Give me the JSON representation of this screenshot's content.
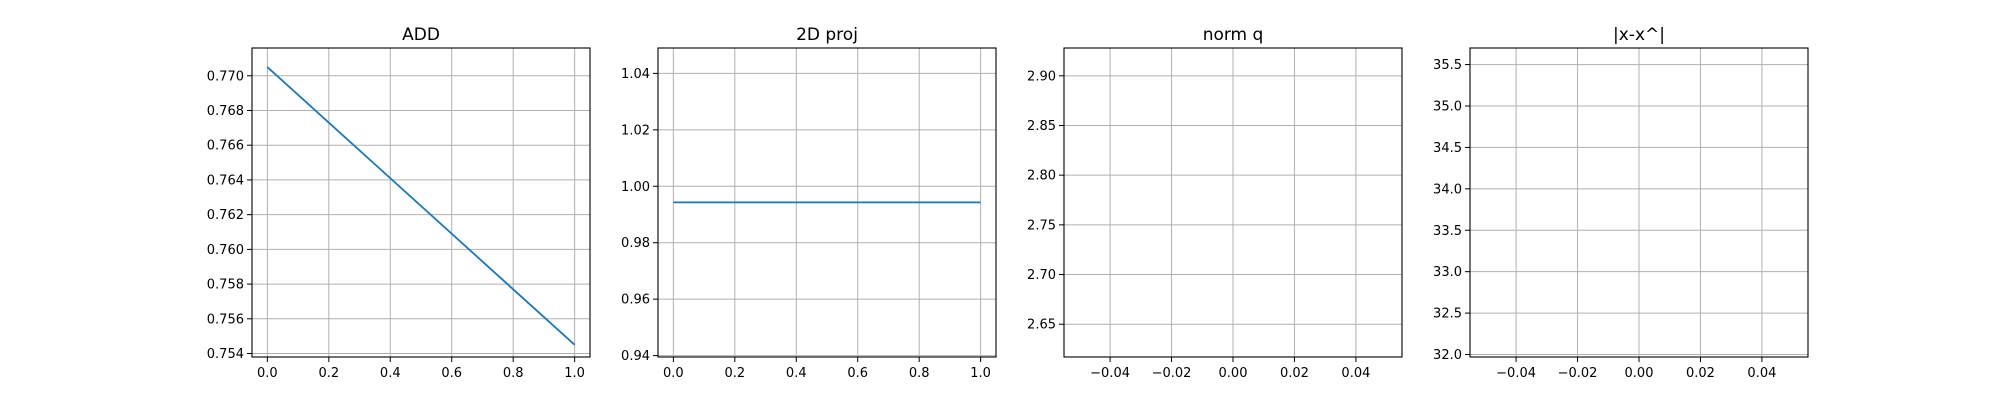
{
  "style": {
    "line_color": "#1f77b4",
    "grid_color": "#b0b0b0",
    "axis_color": "#000000"
  },
  "chart_data": [
    {
      "type": "line",
      "title": "ADD",
      "grid": true,
      "xlim": [
        -0.05,
        1.05
      ],
      "ylim": [
        0.7538,
        0.7716
      ],
      "xticks": [
        0.0,
        0.2,
        0.4,
        0.6,
        0.8,
        1.0
      ],
      "xtick_labels": [
        "0.0",
        "0.2",
        "0.4",
        "0.6",
        "0.8",
        "1.0"
      ],
      "yticks": [
        0.754,
        0.756,
        0.758,
        0.76,
        0.762,
        0.764,
        0.766,
        0.768,
        0.77
      ],
      "ytick_labels": [
        "0.754",
        "0.756",
        "0.758",
        "0.760",
        "0.762",
        "0.764",
        "0.766",
        "0.768",
        "0.770"
      ],
      "series": [
        {
          "x": [
            0,
            1
          ],
          "y": [
            0.7705,
            0.7545
          ]
        }
      ]
    },
    {
      "type": "line",
      "title": "2D proj",
      "grid": true,
      "xlim": [
        -0.05,
        1.05
      ],
      "ylim": [
        0.9395,
        1.049
      ],
      "xticks": [
        0.0,
        0.2,
        0.4,
        0.6,
        0.8,
        1.0
      ],
      "xtick_labels": [
        "0.0",
        "0.2",
        "0.4",
        "0.6",
        "0.8",
        "1.0"
      ],
      "yticks": [
        0.94,
        0.96,
        0.98,
        1.0,
        1.02,
        1.04
      ],
      "ytick_labels": [
        "0.94",
        "0.96",
        "0.98",
        "1.00",
        "1.02",
        "1.04"
      ],
      "series": [
        {
          "x": [
            0,
            1
          ],
          "y": [
            0.9943,
            0.9943
          ]
        }
      ]
    },
    {
      "type": "line",
      "title": "norm q",
      "grid": true,
      "xlim": [
        -0.055,
        0.055
      ],
      "ylim": [
        2.617,
        2.928
      ],
      "xticks": [
        -0.04,
        -0.02,
        0.0,
        0.02,
        0.04
      ],
      "xtick_labels": [
        "−0.04",
        "−0.02",
        "0.00",
        "0.02",
        "0.04"
      ],
      "yticks": [
        2.65,
        2.7,
        2.75,
        2.8,
        2.85,
        2.9
      ],
      "ytick_labels": [
        "2.65",
        "2.70",
        "2.75",
        "2.80",
        "2.85",
        "2.90"
      ],
      "series": []
    },
    {
      "type": "line",
      "title": "|x-x^|",
      "grid": true,
      "xlim": [
        -0.055,
        0.055
      ],
      "ylim": [
        31.97,
        35.7
      ],
      "xticks": [
        -0.04,
        -0.02,
        0.0,
        0.02,
        0.04
      ],
      "xtick_labels": [
        "−0.04",
        "−0.02",
        "0.00",
        "0.02",
        "0.04"
      ],
      "yticks": [
        32.0,
        32.5,
        33.0,
        33.5,
        34.0,
        34.5,
        35.0,
        35.5
      ],
      "ytick_labels": [
        "32.0",
        "32.5",
        "33.0",
        "33.5",
        "34.0",
        "34.5",
        "35.0",
        "35.5"
      ],
      "series": []
    }
  ]
}
